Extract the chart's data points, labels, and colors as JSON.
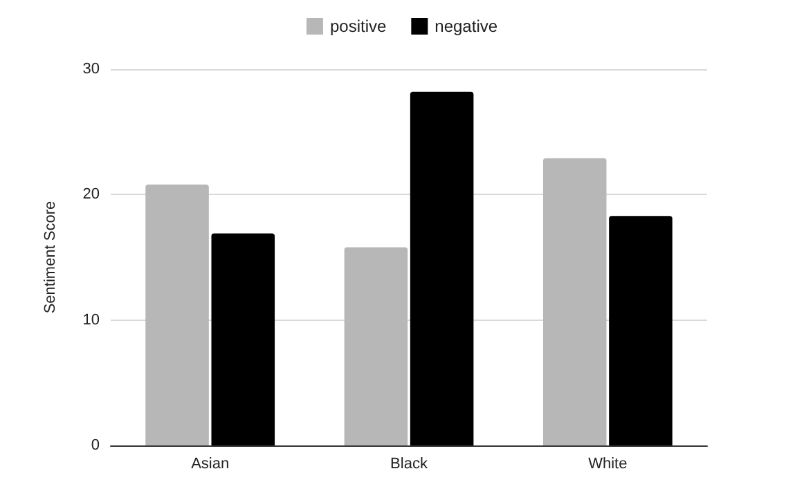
{
  "chart_data": {
    "type": "bar",
    "ylabel": "Sentiment Score",
    "categories": [
      "Asian",
      "Black",
      "White"
    ],
    "series": [
      {
        "name": "positive",
        "color": "#b7b7b7",
        "values": [
          20.8,
          15.8,
          22.9
        ]
      },
      {
        "name": "negative",
        "color": "#000000",
        "values": [
          16.9,
          28.2,
          18.3
        ]
      }
    ],
    "ylim": [
      0,
      30
    ],
    "yticks": [
      0,
      10,
      20,
      30
    ],
    "grid": "y",
    "legend": "top"
  }
}
